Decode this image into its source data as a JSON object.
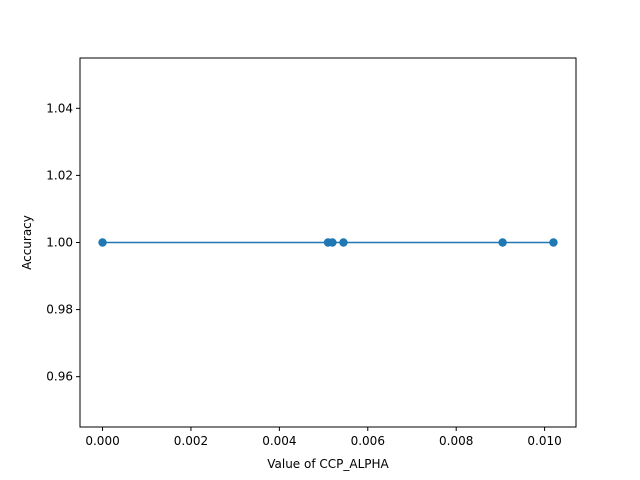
{
  "chart_data": {
    "type": "line",
    "title": "",
    "xlabel": "Value of CCP_ALPHA",
    "ylabel": "Accuracy",
    "xlim": [
      -0.00051,
      0.01071
    ],
    "ylim": [
      0.945,
      1.055
    ],
    "xticks": [
      0.0,
      0.002,
      0.004,
      0.006,
      0.008,
      0.01
    ],
    "xtick_labels": [
      "0.000",
      "0.002",
      "0.004",
      "0.006",
      "0.008",
      "0.010"
    ],
    "yticks": [
      0.96,
      0.98,
      1.0,
      1.02,
      1.04
    ],
    "ytick_labels": [
      "0.96",
      "0.98",
      "1.00",
      "1.02",
      "1.04"
    ],
    "grid": false,
    "series": [
      {
        "color": "#1f77b4",
        "marker": "circle",
        "x": [
          0.0,
          0.0051,
          0.0052,
          0.00545,
          0.00905,
          0.0102
        ],
        "y": [
          1.0,
          1.0,
          1.0,
          1.0,
          1.0,
          1.0
        ]
      }
    ]
  }
}
